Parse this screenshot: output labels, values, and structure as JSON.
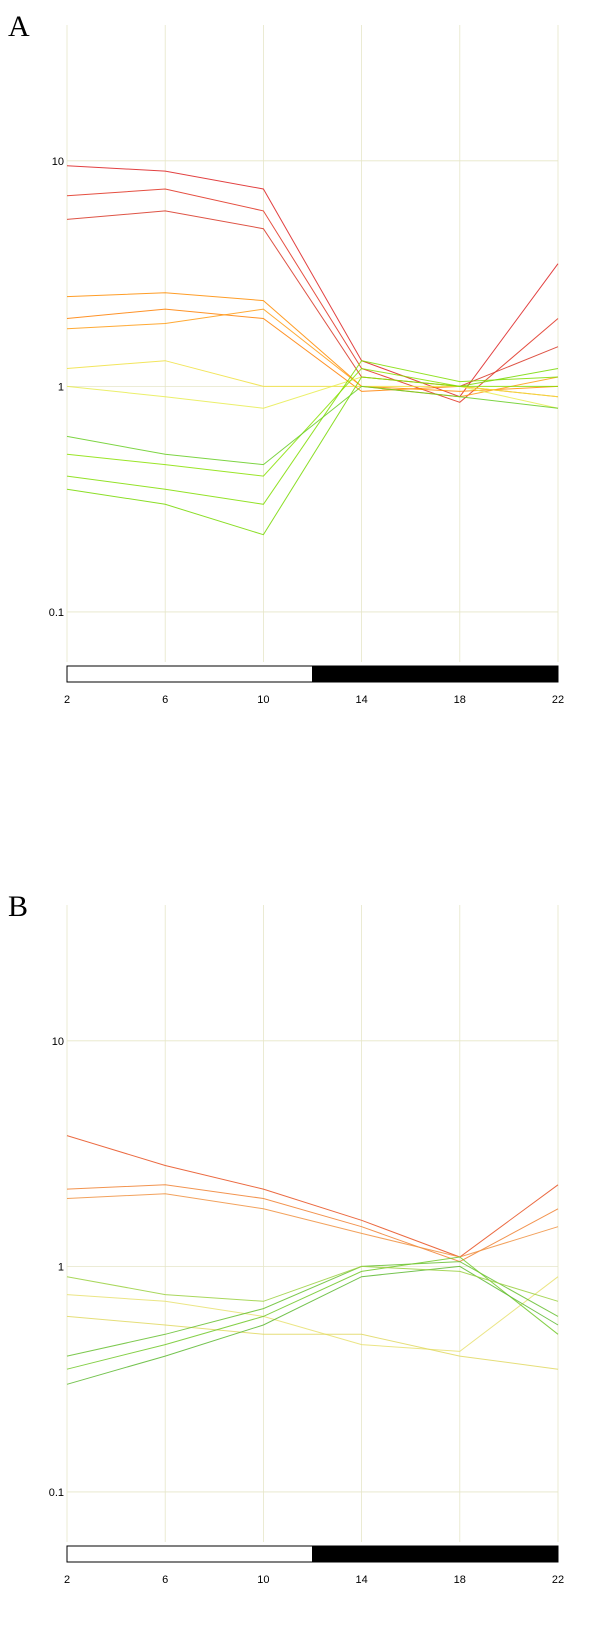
{
  "chart_data": [
    {
      "type": "line",
      "panel_label": "A",
      "x": [
        2,
        6,
        10,
        14,
        18,
        22
      ],
      "x_tick_labels": [
        "2",
        "6",
        "10",
        "14",
        "18",
        "22"
      ],
      "y_scale": "log",
      "y_ticks": [
        0.1,
        1,
        10
      ],
      "y_tick_labels": [
        "0.1",
        "1",
        "10"
      ],
      "ylim": [
        0.06,
        40
      ],
      "xlim": [
        2,
        22
      ],
      "grid": true,
      "light_dark_bar": {
        "light": [
          2,
          12
        ],
        "dark": [
          12,
          22
        ]
      },
      "series": [
        {
          "values": [
            9.5,
            9.0,
            7.5,
            1.3,
            0.9,
            3.5
          ],
          "color": "#dd2020"
        },
        {
          "values": [
            7.0,
            7.5,
            6.0,
            1.2,
            0.85,
            2.0
          ],
          "color": "#e03020"
        },
        {
          "values": [
            5.5,
            6.0,
            5.0,
            1.1,
            1.0,
            1.5
          ],
          "color": "#d83525"
        },
        {
          "values": [
            2.5,
            2.6,
            2.4,
            1.0,
            0.95,
            1.0
          ],
          "color": "#ff8c00"
        },
        {
          "values": [
            2.0,
            2.2,
            2.0,
            0.95,
            1.0,
            0.9
          ],
          "color": "#ff7f00"
        },
        {
          "values": [
            1.8,
            1.9,
            2.2,
            1.0,
            0.9,
            1.1
          ],
          "color": "#ff9a10"
        },
        {
          "values": [
            1.2,
            1.3,
            1.0,
            1.0,
            1.0,
            0.9
          ],
          "color": "#f0e040"
        },
        {
          "values": [
            1.0,
            0.9,
            0.8,
            1.1,
            1.0,
            0.8
          ],
          "color": "#e8ec50"
        },
        {
          "values": [
            0.5,
            0.45,
            0.4,
            1.2,
            1.0,
            1.0
          ],
          "color": "#88e000"
        },
        {
          "values": [
            0.4,
            0.35,
            0.3,
            1.3,
            1.05,
            1.1
          ],
          "color": "#80dd00"
        },
        {
          "values": [
            0.35,
            0.3,
            0.22,
            1.1,
            1.0,
            1.2
          ],
          "color": "#77d800"
        },
        {
          "values": [
            0.6,
            0.5,
            0.45,
            1.0,
            0.9,
            0.8
          ],
          "color": "#66cc22"
        }
      ]
    },
    {
      "type": "line",
      "panel_label": "B",
      "x": [
        2,
        6,
        10,
        14,
        18,
        22
      ],
      "x_tick_labels": [
        "2",
        "6",
        "10",
        "14",
        "18",
        "22"
      ],
      "y_scale": "log",
      "y_ticks": [
        0.1,
        1,
        10
      ],
      "y_tick_labels": [
        "0.1",
        "1",
        "10"
      ],
      "ylim": [
        0.06,
        40
      ],
      "xlim": [
        2,
        22
      ],
      "grid": true,
      "light_dark_bar": {
        "light": [
          2,
          12
        ],
        "dark": [
          12,
          22
        ]
      },
      "series": [
        {
          "values": [
            3.8,
            2.8,
            2.2,
            1.6,
            1.1,
            2.3
          ],
          "color": "#e85020"
        },
        {
          "values": [
            2.2,
            2.3,
            2.0,
            1.5,
            1.05,
            1.8
          ],
          "color": "#f08030"
        },
        {
          "values": [
            2.0,
            2.1,
            1.8,
            1.4,
            1.1,
            1.5
          ],
          "color": "#f09040"
        },
        {
          "values": [
            0.75,
            0.7,
            0.6,
            0.45,
            0.42,
            0.9
          ],
          "color": "#e8e070"
        },
        {
          "values": [
            0.6,
            0.55,
            0.5,
            0.5,
            0.4,
            0.35
          ],
          "color": "#e0d860"
        },
        {
          "values": [
            0.4,
            0.5,
            0.65,
            1.0,
            1.05,
            0.6
          ],
          "color": "#66c030"
        },
        {
          "values": [
            0.35,
            0.45,
            0.6,
            0.95,
            1.1,
            0.5
          ],
          "color": "#70c828"
        },
        {
          "values": [
            0.3,
            0.4,
            0.55,
            0.9,
            1.0,
            0.55
          ],
          "color": "#5cb830"
        },
        {
          "values": [
            0.9,
            0.75,
            0.7,
            1.0,
            0.95,
            0.7
          ],
          "color": "#9ad040"
        }
      ]
    }
  ]
}
